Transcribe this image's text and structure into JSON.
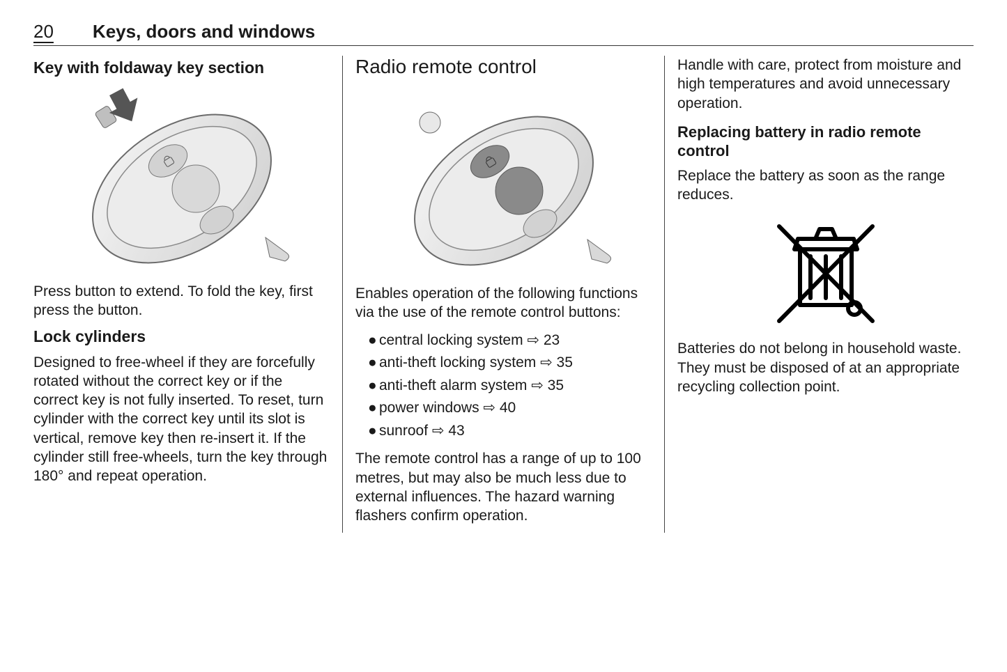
{
  "header": {
    "page_number": "20",
    "chapter_title": "Keys, doors and windows"
  },
  "col1": {
    "h3_foldaway": "Key with foldaway key section",
    "foldaway_body": "Press button to extend. To fold the key, first press the button.",
    "h3_lock": "Lock cylinders",
    "lock_body": "Designed to free-wheel if they are forcefully rotated without the correct key or if the correct key is not fully inserted. To reset, turn cylinder with the correct key until its slot is vertical, remove key then re-insert it. If the cylinder still free-wheels, turn the key through 180° and repeat operation.",
    "keyfob_illustration": {
      "type": "line-illustration",
      "subject": "car key fob with foldaway key section, arrow pressing release button",
      "stroke": "#6b6b6b",
      "fill_light": "#f1f1f1",
      "fill_mid": "#d9d9d9",
      "fill_dark": "#bfbfbf",
      "arrow_fill": "#555555"
    }
  },
  "col2": {
    "h2_radio": "Radio remote control",
    "intro": "Enables operation of the following functions via the use of the remote control buttons:",
    "bullets": [
      {
        "text": "central locking system",
        "ref": "23"
      },
      {
        "text": "anti-theft locking system",
        "ref": "35"
      },
      {
        "text": "anti-theft alarm system",
        "ref": "35"
      },
      {
        "text": "power windows",
        "ref": "40"
      },
      {
        "text": "sunroof",
        "ref": "43"
      }
    ],
    "range_body": "The remote control has a range of up to 100 metres, but may also be much less due to external influences. The hazard warning flashers confirm operation.",
    "keyfob_illustration": {
      "type": "line-illustration",
      "subject": "car key fob remote control with lock/unlock buttons",
      "stroke": "#6b6b6b",
      "fill_light": "#f1f1f1",
      "fill_mid": "#d9d9d9",
      "fill_dark": "#bfbfbf",
      "button_fill": "#8a8a8a"
    },
    "xref_glyph": "⇨"
  },
  "col3": {
    "handle_body": "Handle with care, protect from moisture and high temperatures and avoid unnecessary operation.",
    "h4_replace": "Replacing battery in radio remote control",
    "replace_body": "Replace the battery as soon as the range reduces.",
    "recycle_icon": {
      "type": "pictogram",
      "subject": "crossed-out wheeled bin — do not dispose in household waste",
      "stroke": "#000000",
      "stroke_width": 6,
      "fill": "none"
    },
    "batteries_body": "Batteries do not belong in household waste. They must be disposed of at an appropriate recycling collection point."
  }
}
